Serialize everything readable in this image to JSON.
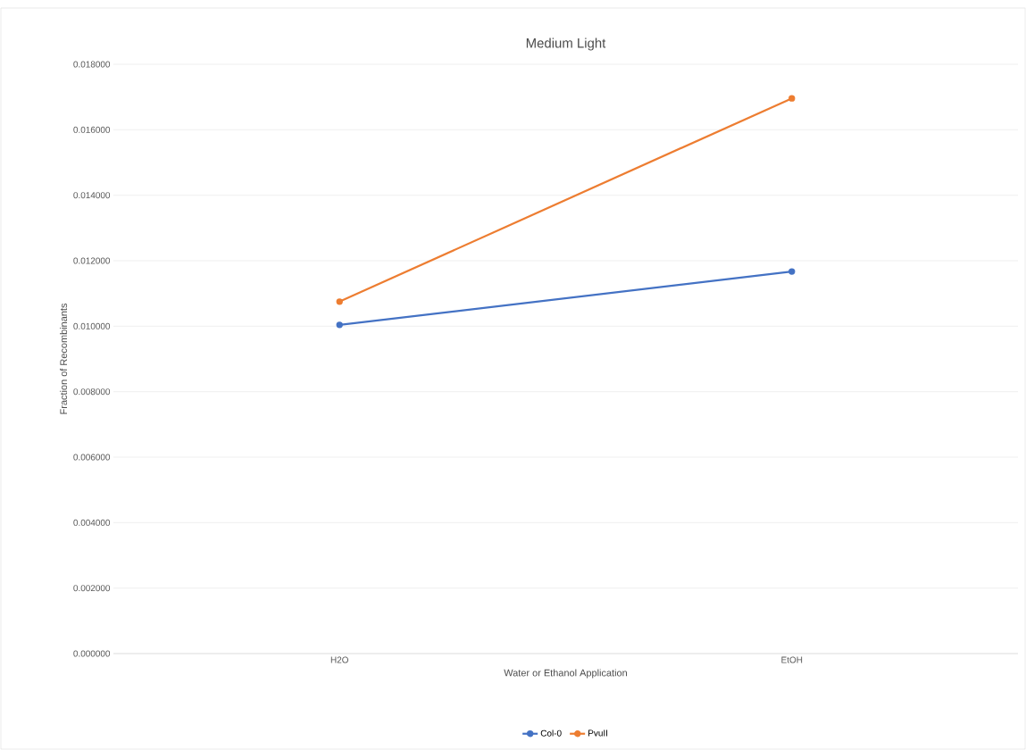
{
  "chart_data": {
    "type": "line",
    "title": "Medium Light",
    "xlabel": "Water or Ethanol Application",
    "ylabel": "Fraction of Recombinants",
    "categories": [
      "H2O",
      "EtOH"
    ],
    "series": [
      {
        "name": "Col-0",
        "color": "#4472c4",
        "values": [
          0.01004,
          0.01167
        ]
      },
      {
        "name": "PvuII",
        "color": "#ed7d31",
        "values": [
          0.01075,
          0.01696
        ]
      }
    ],
    "ylim": [
      0,
      0.018
    ],
    "yticks": [
      {
        "value": 0,
        "label": "0.000000"
      },
      {
        "value": 0.002,
        "label": "0.002000"
      },
      {
        "value": 0.004,
        "label": "0.004000"
      },
      {
        "value": 0.006,
        "label": "0.006000"
      },
      {
        "value": 0.008,
        "label": "0.008000"
      },
      {
        "value": 0.01,
        "label": "0.010000"
      },
      {
        "value": 0.012,
        "label": "0.012000"
      },
      {
        "value": 0.014,
        "label": "0.014000"
      },
      {
        "value": 0.016,
        "label": "0.016000"
      },
      {
        "value": 0.018,
        "label": "0.018000"
      }
    ],
    "grid": "y",
    "legend": "bottom",
    "marker": "circle",
    "line_style": "solid"
  }
}
